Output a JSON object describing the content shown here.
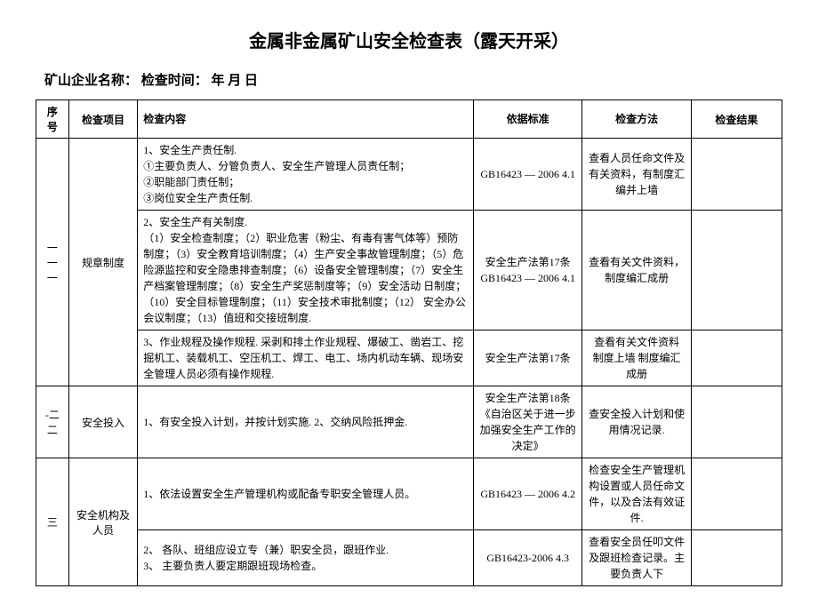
{
  "title": "金属非金属矿山安全检查表（露天开采）",
  "subtitle": "矿山企业名称：  检查时间：  年  月  日",
  "headers": {
    "seq": "序号",
    "item": "检查项目",
    "content": "检查内容",
    "basis": "依据标准",
    "method": "检查方法",
    "result": "检查结果"
  },
  "rows": [
    {
      "seq": "一一一",
      "item": "规章制度",
      "sub": [
        {
          "content": "1、安全生产责任制. \n①主要负责人、分管负责人、安全生产管理人员责任制；\n②职能部门责任制；\n③岗位安全生产责任制.",
          "basis": "GB16423 — 2006  4.1",
          "method": "查看人员任命文件及有关资料，有制度汇编并上墙",
          "result": ""
        },
        {
          "content": "2、安全生产有关制度. \n    （1）安全检查制度；（2）职业危害（粉尘、有毒有害气体等）预防  制度；（3）安全教育培训制度；（4）生产安全事故管理制度；（5）危险源监控和安全隐患排查制度；（6）设备安全管理制度；（7）安全生产档案管理制度；（8）安全生产奖惩制度等；（9）安全活动  日制度；（10）安全目标管理制度；（11）安全技术审批制度；（12）  安全办公会议制度；（13）值班和交接班制度.",
          "basis": "安全生产法第17条 GB16423 — 2006  4.1",
          "method": "查看有关文件资料，制度编汇成册",
          "result": ""
        },
        {
          "content": "3、作业规程及操作规程. 采剥和排土作业规程、爆破工、凿岩工、挖  掘机工、装载机工、空压机工、焊工、电工、场内机动车辆、现场安  全管理人员必须有操作规程.",
          "basis": "安全生产法第17条",
          "method": "查看有关文件资料 制度上墙  制度编汇成册",
          "result": ""
        }
      ]
    },
    {
      "seq": "-二二",
      "item": "安全投入",
      "sub": [
        {
          "content": "1、有安全投入计划，并按计划实施. 2、交纳风险抵押金.",
          "basis": "安全生产法第18条 《自治区关于进一步加强安全生产工作的决定》",
          "method": "查安全投入计划和使用情况记录.",
          "result": ""
        }
      ]
    },
    {
      "seq": "三",
      "item": "安全机构及  人员",
      "sub": [
        {
          "content": "1、依法设置安全生产管理机构或配备专职安全管理人员。",
          "basis": "GB16423 — 2006  4.2",
          "method": "检查安全生产管理机构设置或人员任命文件，以及合法有效证件.",
          "result": ""
        },
        {
          "content": "2、  各队、班组应设立专（兼）职安全员，跟班作业. \n3、  主要负责人要定期跟班现场检查。",
          "basis": "GB16423-2006  4.3",
          "method": "查看安全员任叩文件及跟班检查记录。主要负责人下",
          "result": ""
        }
      ]
    }
  ]
}
